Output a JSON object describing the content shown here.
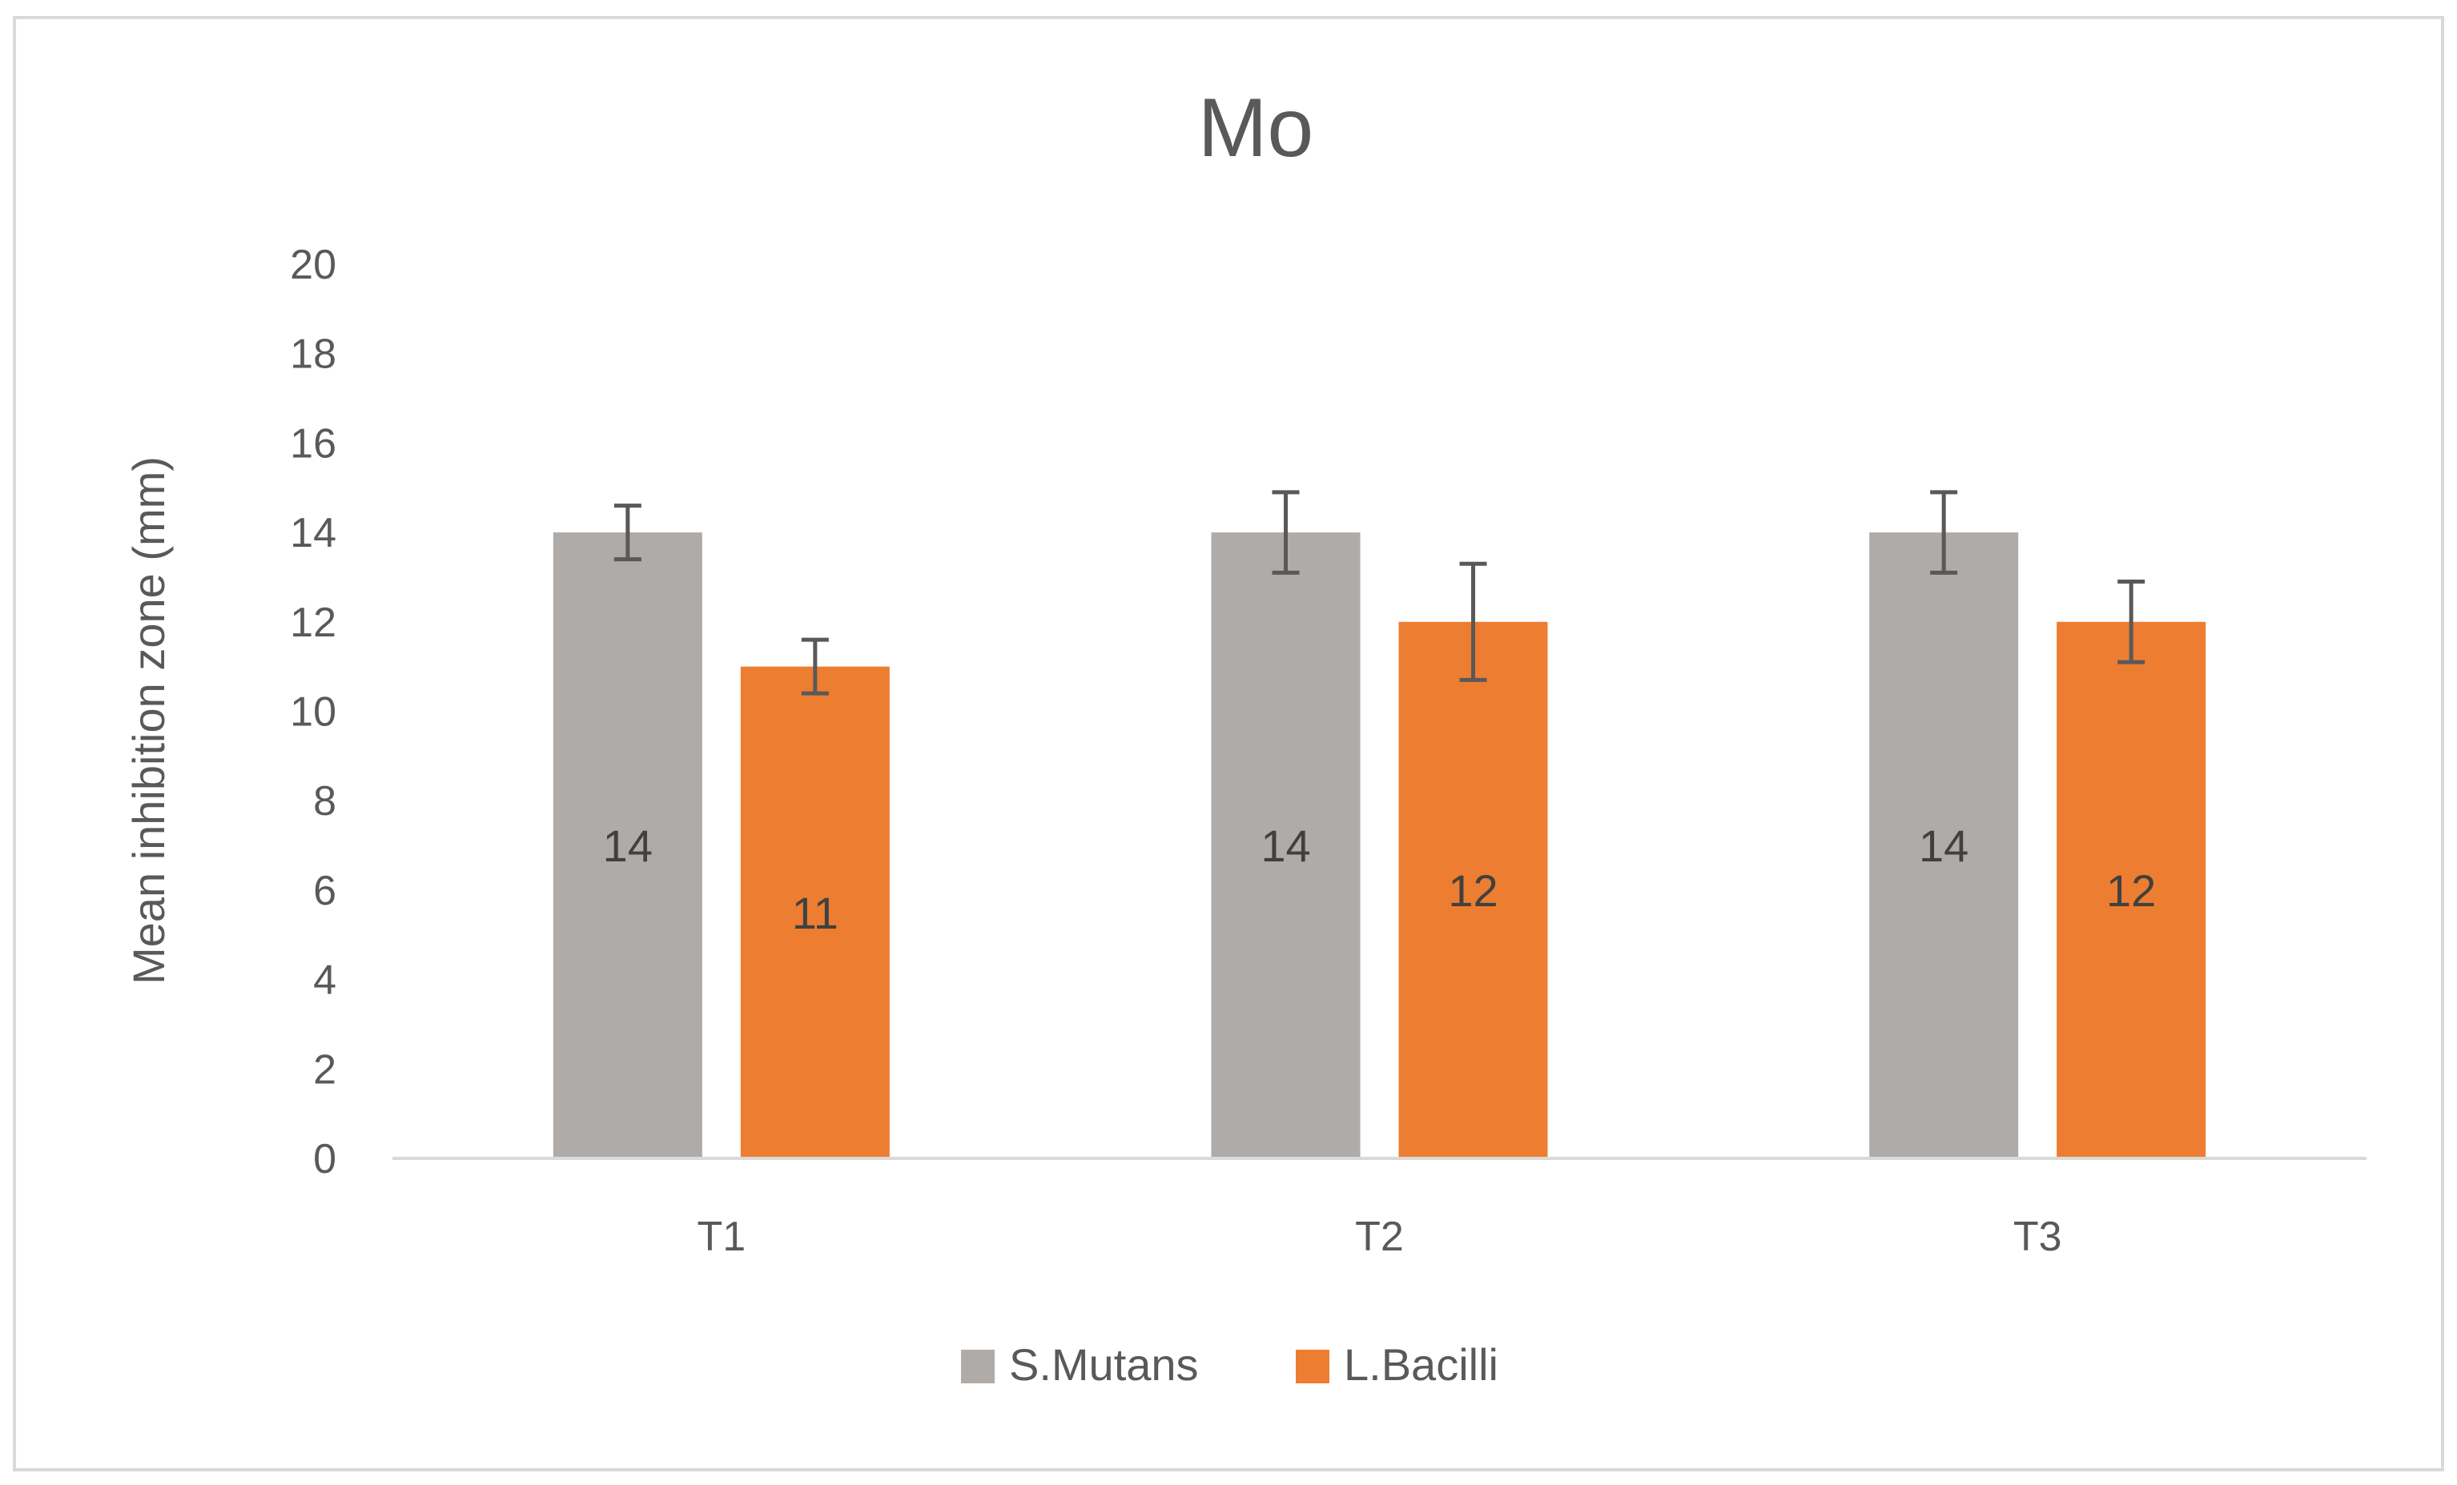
{
  "chart_data": {
    "type": "bar",
    "title": "Mo",
    "xlabel": "",
    "ylabel": "Mean inhibition zone (mm)",
    "categories": [
      "T1",
      "T2",
      "T3"
    ],
    "ylim": [
      0,
      20
    ],
    "yticks": [
      0,
      2,
      4,
      6,
      8,
      10,
      12,
      14,
      16,
      18,
      20
    ],
    "grid": false,
    "legend": "bottom",
    "series": [
      {
        "name": "S.Mutans",
        "color": "#AEABA8",
        "values": [
          14,
          14,
          14
        ],
        "labels": [
          "14",
          "14",
          "14"
        ],
        "error": [
          0.6,
          0.9,
          0.9
        ]
      },
      {
        "name": "L.Bacilli",
        "color": "#ED7D31",
        "values": [
          11,
          12,
          12
        ],
        "labels": [
          "11",
          "12",
          "12"
        ],
        "error": [
          0.6,
          1.3,
          0.9
        ]
      }
    ]
  }
}
